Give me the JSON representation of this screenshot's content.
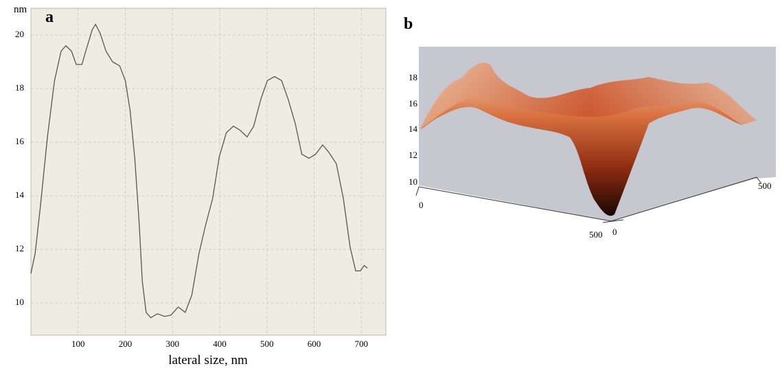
{
  "chart_data": {
    "type": "line",
    "panel_label": "a",
    "y_unit_label": "nm",
    "x_label": "lateral size, nm",
    "x": [
      0,
      9,
      20,
      35,
      50,
      64,
      74,
      86,
      96,
      108,
      118,
      130,
      137,
      147,
      159,
      173,
      188,
      200,
      210,
      220,
      229,
      236,
      244,
      254,
      268,
      283,
      297,
      312,
      327,
      341,
      356,
      370,
      385,
      399,
      414,
      429,
      443,
      458,
      472,
      487,
      501,
      516,
      531,
      545,
      560,
      574,
      589,
      603,
      618,
      630,
      647,
      662,
      676,
      688,
      698,
      706,
      713
    ],
    "series": [
      {
        "color": "#555555",
        "values": [
          11.1,
          11.85,
          13.6,
          16.2,
          18.3,
          19.4,
          19.6,
          19.4,
          18.9,
          18.9,
          19.5,
          20.2,
          20.4,
          20.05,
          19.4,
          19.0,
          18.85,
          18.3,
          17.2,
          15.4,
          13.1,
          10.8,
          9.65,
          9.45,
          9.6,
          9.5,
          9.55,
          9.85,
          9.65,
          10.3,
          11.85,
          12.9,
          13.9,
          15.45,
          16.35,
          16.6,
          16.45,
          16.2,
          16.6,
          17.6,
          18.3,
          18.45,
          18.3,
          17.6,
          16.7,
          15.55,
          15.4,
          15.55,
          15.9,
          15.65,
          15.2,
          13.9,
          12.1,
          11.2,
          11.2,
          11.4,
          11.3
        ]
      }
    ],
    "xlim": [
      0,
      752
    ],
    "xticks": [
      100,
      200,
      300,
      400,
      500,
      600,
      700
    ],
    "ylim": [
      8.8,
      21
    ],
    "yticks": [
      10,
      12,
      14,
      16,
      18,
      20
    ],
    "grid": true
  },
  "surface_plot": {
    "panel_label": "b",
    "z_ticks": [
      "18",
      "16",
      "14",
      "12",
      "10"
    ],
    "x_ticks": [
      "0",
      "500"
    ],
    "y_ticks": [
      "0",
      "500"
    ]
  }
}
